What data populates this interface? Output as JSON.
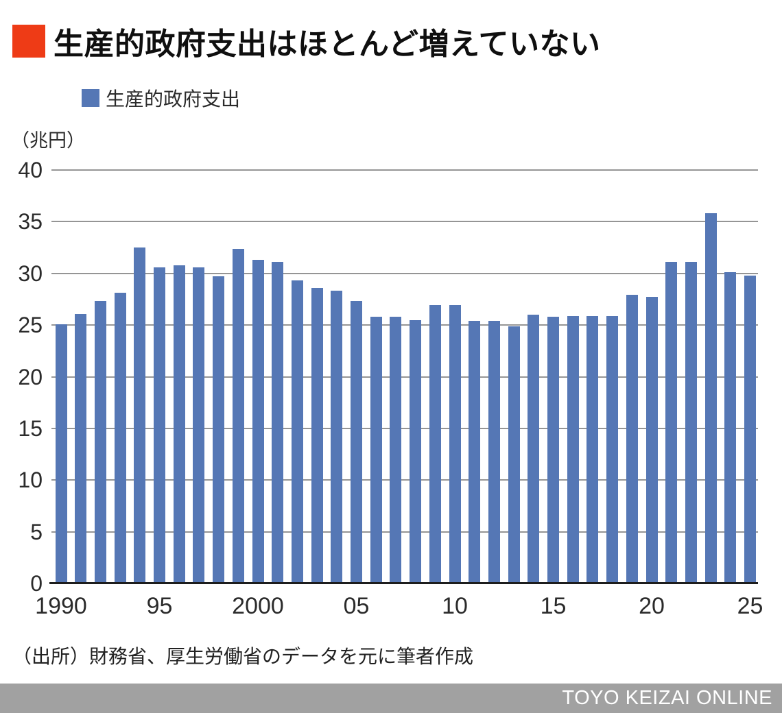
{
  "header": {
    "title": "生産的政府支出はほとんど増えていない",
    "accent_color": "#ee3b16"
  },
  "legend": {
    "label": "生産的政府支出",
    "swatch_color": "#5577b5"
  },
  "chart_data": {
    "type": "bar",
    "title": "生産的政府支出はほとんど増えていない",
    "series_name": "生産的政府支出",
    "unit_label": "（兆円）",
    "ylabel": "兆円",
    "ylim": [
      0,
      40
    ],
    "y_ticks": [
      0,
      5,
      10,
      15,
      20,
      25,
      30,
      35,
      40
    ],
    "grid": true,
    "legend_position": "top-left",
    "x": [
      1990,
      1991,
      1992,
      1993,
      1994,
      1995,
      1996,
      1997,
      1998,
      1999,
      2000,
      2001,
      2002,
      2003,
      2004,
      2005,
      2006,
      2007,
      2008,
      2009,
      2010,
      2011,
      2012,
      2013,
      2014,
      2015,
      2016,
      2017,
      2018,
      2019,
      2020,
      2021,
      2022,
      2023,
      2024,
      2025
    ],
    "values": [
      25.1,
      26.1,
      27.3,
      28.1,
      32.5,
      30.6,
      30.8,
      30.6,
      29.7,
      32.4,
      31.3,
      31.1,
      29.3,
      28.6,
      28.3,
      27.3,
      25.8,
      25.8,
      25.5,
      26.9,
      26.9,
      25.4,
      25.4,
      24.9,
      26.0,
      25.8,
      25.9,
      25.9,
      25.9,
      27.9,
      27.7,
      31.1,
      31.1,
      35.8,
      30.1,
      29.8
    ],
    "x_tick_labels": [
      {
        "index": 0,
        "label": "1990"
      },
      {
        "index": 5,
        "label": "95"
      },
      {
        "index": 10,
        "label": "2000"
      },
      {
        "index": 15,
        "label": "05"
      },
      {
        "index": 20,
        "label": "10"
      },
      {
        "index": 25,
        "label": "15"
      },
      {
        "index": 30,
        "label": "20"
      },
      {
        "index": 35,
        "label": "25"
      }
    ],
    "bar_color": "#5577b5",
    "grid_color": "#959595",
    "axis_color": "#1d1d1d"
  },
  "source_note": "（出所）財務省、厚生労働省のデータを元に筆者作成",
  "footer": {
    "brand": "TOYO KEIZAI ONLINE",
    "bg_color": "#a1a1a1"
  }
}
